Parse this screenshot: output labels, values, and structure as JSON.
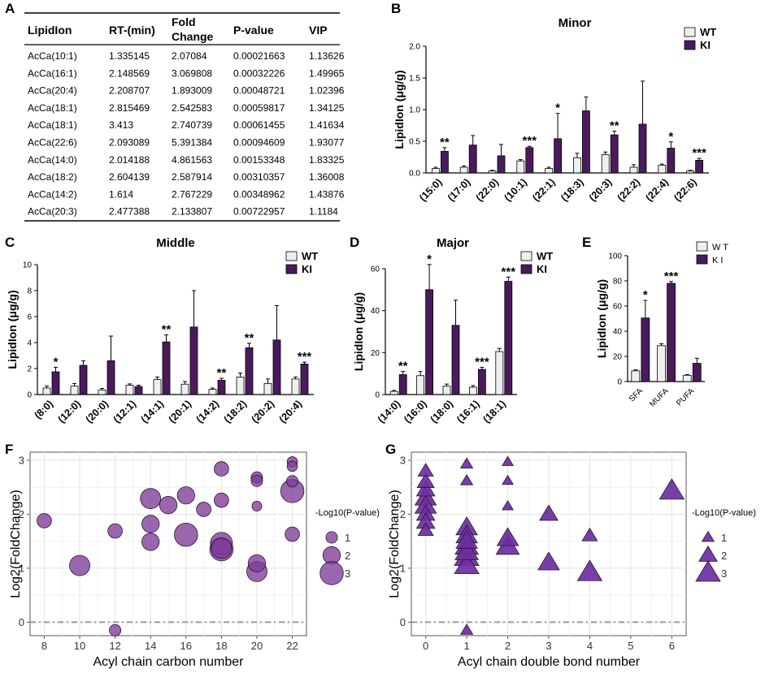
{
  "colors": {
    "wt": "#efefef",
    "ki": "#4a1a5c",
    "bubble": "#7d3c98",
    "triangle": "#6b2fa0"
  },
  "panel_labels": {
    "a": "A",
    "b": "B",
    "c": "C",
    "d": "D",
    "e": "E",
    "f": "F",
    "g": "G"
  },
  "table": {
    "headers": [
      "LipidIon",
      "RT-(min)",
      "Fold Change",
      "P-value",
      "VIP"
    ],
    "header_fold_line1": "Fold",
    "header_fold_line2": "Change",
    "rows": [
      [
        "AcCa(10:1)",
        "1.335145",
        "2.07084",
        "0.00021663",
        "1.13626"
      ],
      [
        "AcCa(16:1)",
        "2.148569",
        "3.069808",
        "0.00032226",
        "1.49965"
      ],
      [
        "AcCa(20:4)",
        "2.208707",
        "1.893009",
        "0.00048721",
        "1.02396"
      ],
      [
        "AcCa(18:1)",
        "2.815469",
        "2.542583",
        "0.00059817",
        "1.34125"
      ],
      [
        "AcCa(18:1)",
        "3.413",
        "2.740739",
        "0.00061455",
        "1.41634"
      ],
      [
        "AcCa(22:6)",
        "2.093089",
        "5.391384",
        "0.00094609",
        "1.93077"
      ],
      [
        "AcCa(14:0)",
        "2.014188",
        "4.861563",
        "0.00153348",
        "1.83325"
      ],
      [
        "AcCa(18:2)",
        "2.604139",
        "2.587914",
        "0.00310357",
        "1.36008"
      ],
      [
        "AcCa(14:2)",
        "1.614",
        "2.767229",
        "0.00348962",
        "1.43876"
      ],
      [
        "AcCa(20:3)",
        "2.477388",
        "2.133807",
        "0.00722957",
        "1.1184"
      ]
    ]
  },
  "chart_data": [
    {
      "id": "B",
      "type": "bar",
      "title": "Minor",
      "ylabel": "LipidIon (μg/g)",
      "ylim": [
        0,
        2.0
      ],
      "yticks": [
        "0.0",
        "0.5",
        "1.0",
        "1.5",
        "2.0"
      ],
      "ytick_values": [
        0,
        0.5,
        1.0,
        1.5,
        2.0
      ],
      "categories": [
        "(15:0)",
        "(17:0)",
        "(22:0)",
        "(10:1)",
        "(22:1)",
        "(18:3)",
        "(20:3)",
        "(22:2)",
        "(22:4)",
        "(22:6)"
      ],
      "series": [
        {
          "name": "WT",
          "values": [
            0.07,
            0.09,
            0.03,
            0.19,
            0.07,
            0.24,
            0.29,
            0.09,
            0.12,
            0.03
          ],
          "errors": [
            0.02,
            0.02,
            0.01,
            0.02,
            0.02,
            0.07,
            0.04,
            0.04,
            0.02,
            0.01
          ]
        },
        {
          "name": "KI",
          "values": [
            0.34,
            0.44,
            0.27,
            0.4,
            0.54,
            0.98,
            0.6,
            0.77,
            0.39,
            0.2
          ],
          "errors": [
            0.06,
            0.15,
            0.18,
            0.02,
            0.4,
            0.22,
            0.06,
            0.68,
            0.1,
            0.03
          ]
        }
      ],
      "significance": [
        "**",
        "",
        "",
        "***",
        "*",
        "",
        "**",
        "",
        "*",
        "***"
      ],
      "legend": [
        "WT",
        "KI"
      ]
    },
    {
      "id": "C",
      "type": "bar",
      "title": "Middle",
      "ylabel": "LipidIon (μg/g)",
      "ylim": [
        0,
        10
      ],
      "yticks": [
        "0",
        "2",
        "4",
        "6",
        "8",
        "10"
      ],
      "ytick_values": [
        0,
        2,
        4,
        6,
        8,
        10
      ],
      "categories": [
        "(8:0)",
        "(12:0)",
        "(20:0)",
        "(12:1)",
        "(14:1)",
        "(20:1)",
        "(14:2)",
        "(18:2)",
        "(20:2)",
        "(20:4)"
      ],
      "series": [
        {
          "name": "WT",
          "values": [
            0.5,
            0.65,
            0.35,
            0.72,
            1.15,
            0.8,
            0.4,
            1.35,
            0.85,
            1.2
          ],
          "errors": [
            0.15,
            0.2,
            0.12,
            0.1,
            0.2,
            0.2,
            0.1,
            0.3,
            0.35,
            0.15
          ]
        },
        {
          "name": "KI",
          "values": [
            1.75,
            2.25,
            2.6,
            0.62,
            4.05,
            5.2,
            1.1,
            3.6,
            4.2,
            2.35
          ],
          "errors": [
            0.35,
            0.35,
            1.9,
            0.1,
            0.55,
            2.8,
            0.15,
            0.35,
            2.65,
            0.15
          ]
        }
      ],
      "significance": [
        "*",
        "",
        "",
        "",
        "**",
        "",
        "**",
        "**",
        "",
        "***"
      ],
      "legend": [
        "WT",
        "KI"
      ]
    },
    {
      "id": "D",
      "type": "bar",
      "title": "Major",
      "ylabel": "LipidIon (μg/g)",
      "ylim": [
        0,
        60
      ],
      "yticks": [
        "0",
        "20",
        "40",
        "60"
      ],
      "ytick_values": [
        0,
        20,
        40,
        60
      ],
      "categories": [
        "(14:0)",
        "(16:0)",
        "(18:0)",
        "(16:1)",
        "(18:1)"
      ],
      "series": [
        {
          "name": "WT",
          "values": [
            1.5,
            9,
            4,
            3.5,
            20.5
          ],
          "errors": [
            0.5,
            2,
            1,
            0.8,
            1.5
          ]
        },
        {
          "name": "KI",
          "values": [
            9.5,
            50,
            33,
            12,
            54
          ],
          "errors": [
            1.5,
            12,
            12,
            1,
            2
          ]
        }
      ],
      "significance": [
        "**",
        "*",
        "",
        "***",
        "***"
      ],
      "legend": [
        "WT",
        "KI"
      ]
    },
    {
      "id": "E",
      "type": "bar",
      "title": "",
      "ylabel": "LipidIon (μg/g)",
      "ylim": [
        0,
        100
      ],
      "yticks": [
        "0",
        "20",
        "40",
        "60",
        "80",
        "100"
      ],
      "ytick_values": [
        0,
        20,
        40,
        60,
        80,
        100
      ],
      "categories": [
        "SFA",
        "MUFA",
        "PUFA"
      ],
      "series": [
        {
          "name": "WT",
          "values": [
            8.5,
            28.5,
            5
          ],
          "errors": [
            0.8,
            1.5,
            0.5
          ]
        },
        {
          "name": "KI",
          "values": [
            50.5,
            78,
            14.5
          ],
          "errors": [
            14,
            1.5,
            4
          ]
        }
      ],
      "significance": [
        "*",
        "***",
        ""
      ],
      "legend": [
        "W T",
        "K I"
      ]
    },
    {
      "id": "F",
      "type": "scatter",
      "title": "",
      "xlabel": "Acyl chain carbon number",
      "ylabel": "Log2(FoldChange)",
      "xlim": [
        7.2,
        22.8
      ],
      "ylim": [
        -0.25,
        3.15
      ],
      "xticks": [
        8,
        10,
        12,
        14,
        16,
        18,
        20,
        22
      ],
      "yticks": [
        0,
        1,
        2,
        3
      ],
      "reference_line_y": 0,
      "legend_title": "-Log10(P-value)",
      "legend_sizes": [
        1,
        2,
        3
      ],
      "legend_labels": [
        "1",
        "2",
        "3"
      ],
      "points": [
        {
          "x": 8,
          "y": 1.88,
          "s": 1.5
        },
        {
          "x": 10,
          "y": 1.05,
          "s": 2.5
        },
        {
          "x": 12,
          "y": 1.69,
          "s": 1.5
        },
        {
          "x": 12,
          "y": -0.15,
          "s": 1.0
        },
        {
          "x": 14,
          "y": 2.29,
          "s": 2.5
        },
        {
          "x": 14,
          "y": 1.82,
          "s": 2.0
        },
        {
          "x": 14,
          "y": 1.49,
          "s": 2.0
        },
        {
          "x": 15,
          "y": 2.17,
          "s": 2.0
        },
        {
          "x": 16,
          "y": 2.35,
          "s": 2.0
        },
        {
          "x": 16,
          "y": 1.62,
          "s": 3.0
        },
        {
          "x": 17,
          "y": 2.09,
          "s": 1.5
        },
        {
          "x": 18,
          "y": 2.84,
          "s": 1.5
        },
        {
          "x": 18,
          "y": 2.26,
          "s": 1.5
        },
        {
          "x": 18,
          "y": 1.46,
          "s": 2.8
        },
        {
          "x": 18,
          "y": 1.37,
          "s": 2.5
        },
        {
          "x": 18,
          "y": 1.35,
          "s": 3.0
        },
        {
          "x": 20,
          "y": 2.68,
          "s": 1.0
        },
        {
          "x": 20,
          "y": 2.62,
          "s": 1.0
        },
        {
          "x": 20,
          "y": 2.15,
          "s": 0.7
        },
        {
          "x": 20,
          "y": 1.09,
          "s": 2.0
        },
        {
          "x": 20,
          "y": 0.94,
          "s": 2.5
        },
        {
          "x": 22,
          "y": 2.97,
          "s": 0.8
        },
        {
          "x": 22,
          "y": 2.89,
          "s": 0.8
        },
        {
          "x": 22,
          "y": 2.61,
          "s": 1.0
        },
        {
          "x": 22,
          "y": 2.43,
          "s": 3.0
        },
        {
          "x": 22,
          "y": 1.63,
          "s": 1.5
        }
      ]
    },
    {
      "id": "G",
      "type": "scatter",
      "title": "",
      "xlabel": "Acyl chain double bond number",
      "ylabel": "Log2(FoldChange)",
      "xlim": [
        -0.35,
        6.35
      ],
      "ylim": [
        -0.25,
        3.15
      ],
      "xticks": [
        0,
        1,
        2,
        3,
        4,
        5,
        6
      ],
      "yticks": [
        0,
        1,
        2,
        3
      ],
      "reference_line_y": 0,
      "legend_title": "-Log10(P-value)",
      "legend_sizes": [
        1,
        2,
        3
      ],
      "legend_labels": [
        "1",
        "2",
        "3"
      ],
      "points": [
        {
          "x": 0,
          "y": 2.8,
          "s": 1.5
        },
        {
          "x": 0,
          "y": 2.6,
          "s": 1.8
        },
        {
          "x": 0,
          "y": 2.45,
          "s": 2.0
        },
        {
          "x": 0,
          "y": 2.3,
          "s": 2.5
        },
        {
          "x": 0,
          "y": 2.15,
          "s": 2.5
        },
        {
          "x": 0,
          "y": 2.0,
          "s": 2.0
        },
        {
          "x": 0,
          "y": 1.85,
          "s": 2.0
        },
        {
          "x": 0,
          "y": 1.7,
          "s": 1.5
        },
        {
          "x": 1,
          "y": 2.93,
          "s": 1.0
        },
        {
          "x": 1,
          "y": 2.62,
          "s": 1.0
        },
        {
          "x": 1,
          "y": 1.75,
          "s": 2.5
        },
        {
          "x": 1,
          "y": 1.6,
          "s": 2.5
        },
        {
          "x": 1,
          "y": 1.5,
          "s": 2.5
        },
        {
          "x": 1,
          "y": 1.4,
          "s": 2.8
        },
        {
          "x": 1,
          "y": 1.3,
          "s": 2.8
        },
        {
          "x": 1,
          "y": 1.2,
          "s": 3.0
        },
        {
          "x": 1,
          "y": 1.05,
          "s": 3.0
        },
        {
          "x": 1,
          "y": -0.15,
          "s": 1.0
        },
        {
          "x": 2,
          "y": 2.97,
          "s": 0.8
        },
        {
          "x": 2,
          "y": 2.62,
          "s": 0.8
        },
        {
          "x": 2,
          "y": 2.15,
          "s": 0.8
        },
        {
          "x": 2,
          "y": 1.55,
          "s": 2.5
        },
        {
          "x": 2,
          "y": 1.4,
          "s": 2.8
        },
        {
          "x": 3,
          "y": 2.0,
          "s": 2.0
        },
        {
          "x": 3,
          "y": 1.1,
          "s": 2.5
        },
        {
          "x": 4,
          "y": 1.6,
          "s": 1.5
        },
        {
          "x": 4,
          "y": 0.92,
          "s": 3.0
        },
        {
          "x": 6,
          "y": 2.43,
          "s": 3.0
        }
      ]
    }
  ]
}
